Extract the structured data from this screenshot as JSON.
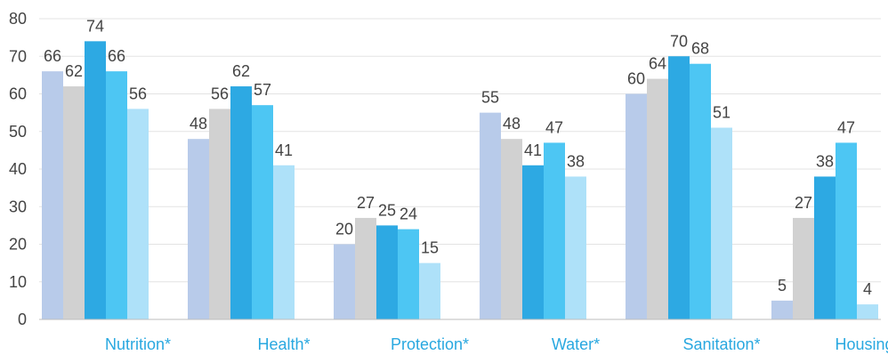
{
  "chart_data": {
    "type": "bar",
    "categories": [
      "Nutrition*",
      "Health*",
      "Protection*",
      "Water*",
      "Sanitation*",
      "Housing*"
    ],
    "series": [
      {
        "values": [
          66,
          48,
          20,
          55,
          60,
          5
        ],
        "color": "#b8cbea"
      },
      {
        "values": [
          62,
          56,
          27,
          48,
          64,
          27
        ],
        "color": "#d1d1d1"
      },
      {
        "values": [
          74,
          62,
          25,
          41,
          70,
          38
        ],
        "color": "#2da9e3"
      },
      {
        "values": [
          66,
          57,
          24,
          47,
          68,
          47
        ],
        "color": "#4dc6f3"
      },
      {
        "values": [
          56,
          41,
          15,
          38,
          51,
          4
        ],
        "color": "#aee1f9"
      }
    ],
    "ylim": [
      0,
      80
    ],
    "yticks": [
      0,
      10,
      20,
      30,
      40,
      50,
      60,
      70,
      80
    ],
    "grid": true,
    "data_labels": true
  }
}
